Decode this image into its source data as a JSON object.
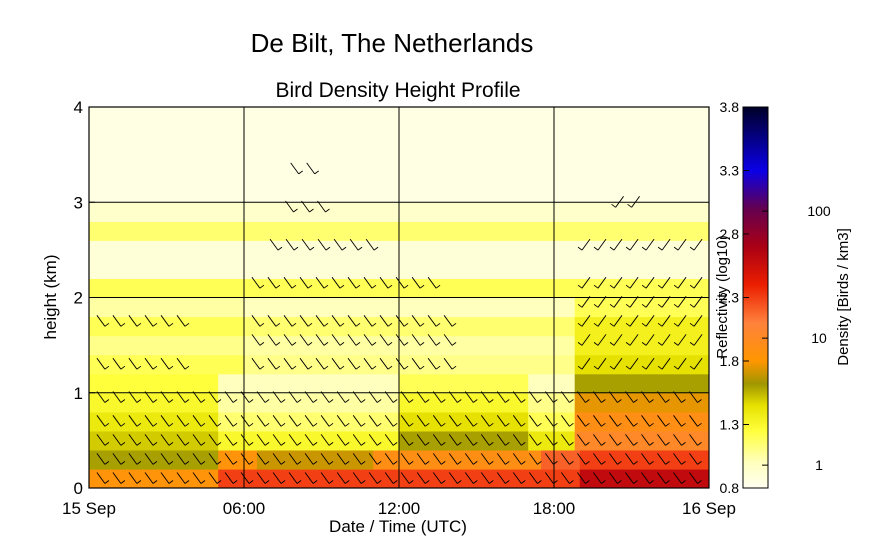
{
  "chart_data": {
    "type": "heatmap",
    "suptitle": "De Bilt, The Netherlands",
    "title": "Bird Density Height Profile",
    "xlabel": "Date / Time (UTC)",
    "ylabel": "height (km)",
    "xlim": [
      0,
      24
    ],
    "ylim": [
      0,
      4
    ],
    "x_ticks": [
      {
        "value": 0,
        "label": "15 Sep"
      },
      {
        "value": 6,
        "label": "06:00"
      },
      {
        "value": 12,
        "label": "12:00"
      },
      {
        "value": 18,
        "label": "18:00"
      },
      {
        "value": 24,
        "label": "16 Sep"
      }
    ],
    "y_ticks": [
      0,
      1,
      2,
      3,
      4
    ],
    "grid": true,
    "colorbar": {
      "range": [
        0.8,
        3.8
      ],
      "left_label": "Reflectivity (log10)",
      "left_ticks": [
        0.8,
        1.3,
        1.8,
        2.3,
        2.8,
        3.3,
        3.8
      ],
      "right_label": "Density [Birds / km3]",
      "right_ticks": [
        {
          "label": "1",
          "value": 0.98
        },
        {
          "label": "10",
          "value": 1.98
        },
        {
          "label": "100",
          "value": 2.98
        }
      ]
    },
    "layers": [
      {
        "h0": 0.0,
        "h1": 0.2,
        "segments": [
          [
            0,
            5.0,
            1.85
          ],
          [
            5.0,
            19.0,
            2.3
          ],
          [
            19.0,
            24,
            2.6
          ]
        ]
      },
      {
        "h0": 0.2,
        "h1": 0.4,
        "segments": [
          [
            0,
            5.0,
            1.6
          ],
          [
            5.0,
            6.5,
            1.85
          ],
          [
            6.5,
            11.0,
            1.7
          ],
          [
            11.0,
            17.5,
            1.9
          ],
          [
            17.5,
            19.0,
            2.2
          ],
          [
            19.0,
            24,
            2.3
          ]
        ]
      },
      {
        "h0": 0.4,
        "h1": 0.6,
        "segments": [
          [
            0,
            5.0,
            1.5
          ],
          [
            5.0,
            12.0,
            1.3
          ],
          [
            12.0,
            17.0,
            1.6
          ],
          [
            17.0,
            18.8,
            1.4
          ],
          [
            18.8,
            24,
            2.0
          ]
        ]
      },
      {
        "h0": 0.6,
        "h1": 0.8,
        "segments": [
          [
            0,
            5.0,
            1.4
          ],
          [
            5.0,
            12.0,
            1.15
          ],
          [
            12.0,
            17.0,
            1.45
          ],
          [
            17.0,
            18.8,
            1.2
          ],
          [
            18.8,
            24,
            1.9
          ]
        ]
      },
      {
        "h0": 0.8,
        "h1": 1.0,
        "segments": [
          [
            0,
            5.0,
            1.3
          ],
          [
            5.0,
            12.0,
            1.05
          ],
          [
            12.0,
            17.0,
            1.3
          ],
          [
            17.0,
            18.8,
            1.1
          ],
          [
            18.8,
            24,
            1.75
          ]
        ]
      },
      {
        "h0": 1.0,
        "h1": 1.2,
        "segments": [
          [
            0,
            5.0,
            1.25
          ],
          [
            5.0,
            12.0,
            1.0
          ],
          [
            12.0,
            17.0,
            1.2
          ],
          [
            17.0,
            18.8,
            1.0
          ],
          [
            18.8,
            24,
            1.6
          ]
        ]
      },
      {
        "h0": 1.2,
        "h1": 1.4,
        "segments": [
          [
            0,
            6.0,
            1.2
          ],
          [
            6.0,
            12.0,
            1.1
          ],
          [
            12.0,
            18.8,
            1.1
          ],
          [
            18.8,
            24,
            1.45
          ]
        ]
      },
      {
        "h0": 1.4,
        "h1": 1.6,
        "segments": [
          [
            0,
            6.0,
            1.1
          ],
          [
            6.0,
            18.8,
            1.05
          ],
          [
            18.8,
            24,
            1.35
          ]
        ]
      },
      {
        "h0": 1.6,
        "h1": 1.8,
        "segments": [
          [
            0,
            6.0,
            1.2
          ],
          [
            6.0,
            18.8,
            1.15
          ],
          [
            18.8,
            24,
            1.35
          ]
        ]
      },
      {
        "h0": 1.8,
        "h1": 2.0,
        "segments": [
          [
            0,
            6.0,
            1.05
          ],
          [
            6.0,
            18.8,
            1.0
          ],
          [
            18.8,
            24,
            1.2
          ]
        ]
      },
      {
        "h0": 2.0,
        "h1": 2.2,
        "segments": [
          [
            0,
            24,
            1.2
          ]
        ]
      },
      {
        "h0": 2.2,
        "h1": 2.6,
        "segments": [
          [
            0,
            24,
            0.9
          ]
        ]
      },
      {
        "h0": 2.6,
        "h1": 2.8,
        "segments": [
          [
            0,
            24,
            1.15
          ]
        ]
      },
      {
        "h0": 2.8,
        "h1": 3.0,
        "segments": [
          [
            0,
            24,
            0.95
          ]
        ]
      },
      {
        "h0": 3.0,
        "h1": 4.0,
        "segments": [
          [
            0,
            24,
            0.85
          ]
        ]
      }
    ],
    "wind_barb_rows": [
      {
        "h": 0.1,
        "x0": 0.5,
        "x1": 24,
        "step": 0.62,
        "dir": 1
      },
      {
        "h": 0.3,
        "x0": 0.5,
        "x1": 24,
        "step": 0.62,
        "dir": 1
      },
      {
        "h": 0.5,
        "x0": 0.5,
        "x1": 24,
        "step": 0.62,
        "dir": 1
      },
      {
        "h": 0.7,
        "x0": 0.5,
        "x1": 24,
        "step": 0.62,
        "dir": 1
      },
      {
        "h": 0.95,
        "x0": 0.5,
        "x1": 24,
        "step": 0.62,
        "dir": 1
      },
      {
        "h": 1.3,
        "x0": 0.5,
        "x1": 4.0,
        "step": 0.62,
        "dir": 1
      },
      {
        "h": 1.3,
        "x0": 6.5,
        "x1": 14.5,
        "step": 0.62,
        "dir": 1
      },
      {
        "h": 1.3,
        "x0": 19.2,
        "x1": 24,
        "step": 0.62,
        "dir": -1
      },
      {
        "h": 1.55,
        "x0": 6.5,
        "x1": 14.5,
        "step": 0.62,
        "dir": 1
      },
      {
        "h": 1.55,
        "x0": 19.2,
        "x1": 24,
        "step": 0.62,
        "dir": -1
      },
      {
        "h": 1.75,
        "x0": 0.5,
        "x1": 4.0,
        "step": 0.62,
        "dir": 1
      },
      {
        "h": 1.75,
        "x0": 6.5,
        "x1": 14.5,
        "step": 0.62,
        "dir": 1
      },
      {
        "h": 1.75,
        "x0": 19.2,
        "x1": 24,
        "step": 0.62,
        "dir": -1
      },
      {
        "h": 1.95,
        "x0": 19.2,
        "x1": 24,
        "step": 0.62,
        "dir": -1
      },
      {
        "h": 2.15,
        "x0": 6.5,
        "x1": 13.8,
        "step": 0.62,
        "dir": 1
      },
      {
        "h": 2.15,
        "x0": 19.2,
        "x1": 24,
        "step": 0.62,
        "dir": -1
      },
      {
        "h": 2.55,
        "x0": 7.2,
        "x1": 11.5,
        "step": 0.62,
        "dir": 1
      },
      {
        "h": 2.55,
        "x0": 19.2,
        "x1": 23.8,
        "step": 0.62,
        "dir": -1
      },
      {
        "h": 2.95,
        "x0": 7.8,
        "x1": 9.2,
        "step": 0.62,
        "dir": 1
      },
      {
        "h": 3.0,
        "x0": 20.5,
        "x1": 21.2,
        "step": 0.62,
        "dir": -1
      },
      {
        "h": 3.35,
        "x0": 8.0,
        "x1": 8.8,
        "step": 0.62,
        "dir": 1
      }
    ]
  }
}
